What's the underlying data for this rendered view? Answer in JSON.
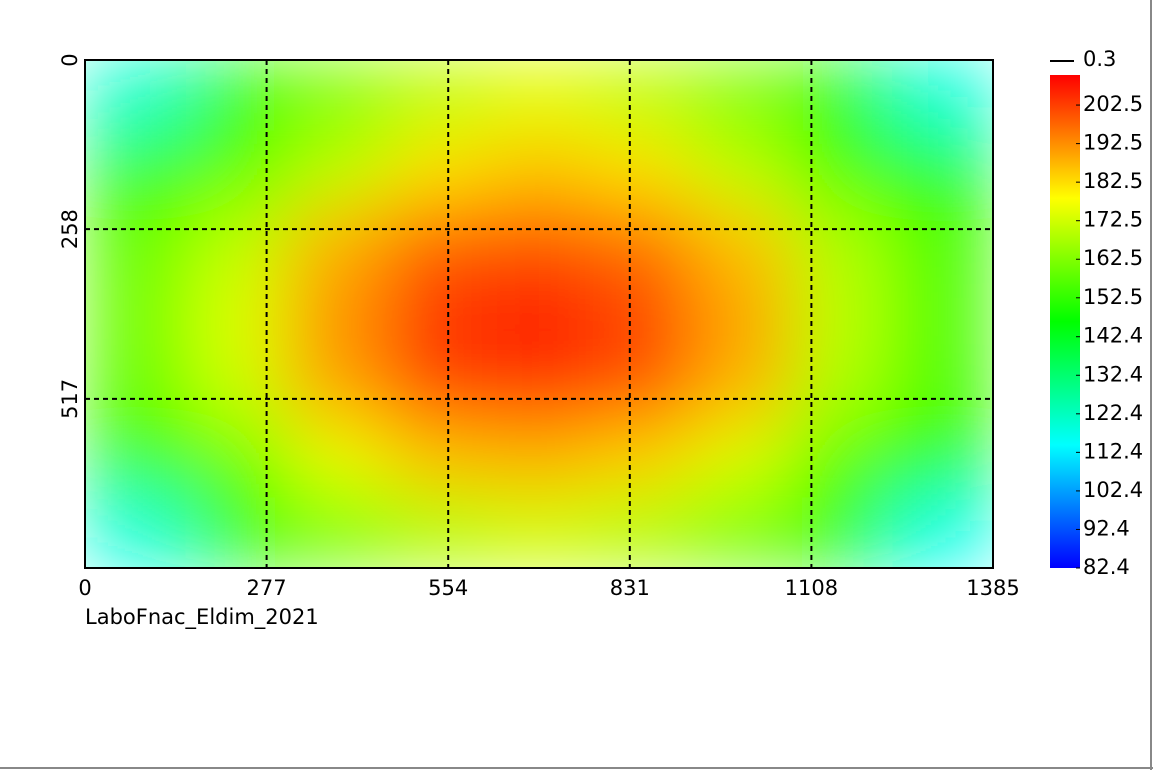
{
  "chart_data": {
    "type": "heatmap",
    "caption": "LaboFnac_Eldim_2021",
    "xlim": [
      0,
      1385
    ],
    "ylim": [
      0,
      775
    ],
    "xticks": [
      0,
      277,
      554,
      831,
      1108,
      1385
    ],
    "yticks": [
      0,
      258,
      517
    ],
    "y_inverted": true,
    "grid": true,
    "clim": [
      82.4,
      210.3
    ],
    "colorbar_ticks": [
      82.4,
      92.4,
      102.4,
      112.4,
      122.4,
      132.4,
      142.4,
      152.5,
      162.5,
      172.5,
      182.5,
      192.5,
      202.5
    ],
    "colormap": [
      "#0000ff",
      "#00ffff",
      "#00ff00",
      "#ffff00",
      "#ff0000"
    ],
    "marker_label": "0.3",
    "z": [
      [
        120,
        150,
        162,
        170,
        175,
        170,
        162,
        150,
        118
      ],
      [
        152,
        158,
        170,
        182,
        186,
        182,
        170,
        156,
        150
      ],
      [
        158,
        170,
        188,
        198,
        200,
        196,
        186,
        168,
        155
      ],
      [
        160,
        174,
        192,
        204,
        208,
        202,
        190,
        170,
        156
      ],
      [
        158,
        172,
        190,
        202,
        204,
        200,
        188,
        168,
        155
      ],
      [
        152,
        160,
        176,
        186,
        188,
        184,
        174,
        158,
        150
      ],
      [
        118,
        148,
        160,
        168,
        172,
        168,
        160,
        148,
        116
      ]
    ]
  }
}
